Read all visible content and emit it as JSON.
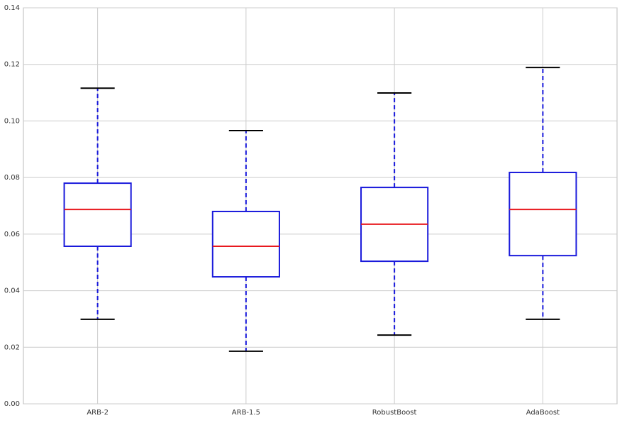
{
  "chart_data": {
    "type": "box",
    "categories": [
      "ARB-2",
      "ARB-1.5",
      "RobustBoost",
      "AdaBoost"
    ],
    "whisker_low": [
      0.0299,
      0.0186,
      0.0243,
      0.0299
    ],
    "q1": [
      0.0557,
      0.0449,
      0.0504,
      0.0524
    ],
    "median": [
      0.0687,
      0.0557,
      0.0635,
      0.0687
    ],
    "q3": [
      0.078,
      0.068,
      0.0765,
      0.0818
    ],
    "whisker_high": [
      0.1116,
      0.0966,
      0.1099,
      0.1189
    ],
    "box_color": "#1a1adb",
    "median_color": "#e8191f",
    "whisker_color": "#1a1adb",
    "cap_color": "#000000",
    "ylim": [
      0,
      0.14
    ],
    "yticks": [
      {
        "value": 0,
        "label": "0.00"
      },
      {
        "value": 0.02,
        "label": "0.02"
      },
      {
        "value": 0.04,
        "label": "0.04"
      },
      {
        "value": 0.06,
        "label": "0.06"
      },
      {
        "value": 0.08,
        "label": "0.08"
      },
      {
        "value": 0.1,
        "label": "0.10"
      },
      {
        "value": 0.12,
        "label": "0.12"
      },
      {
        "value": 0.14,
        "label": "0.14"
      }
    ],
    "grid": true
  }
}
